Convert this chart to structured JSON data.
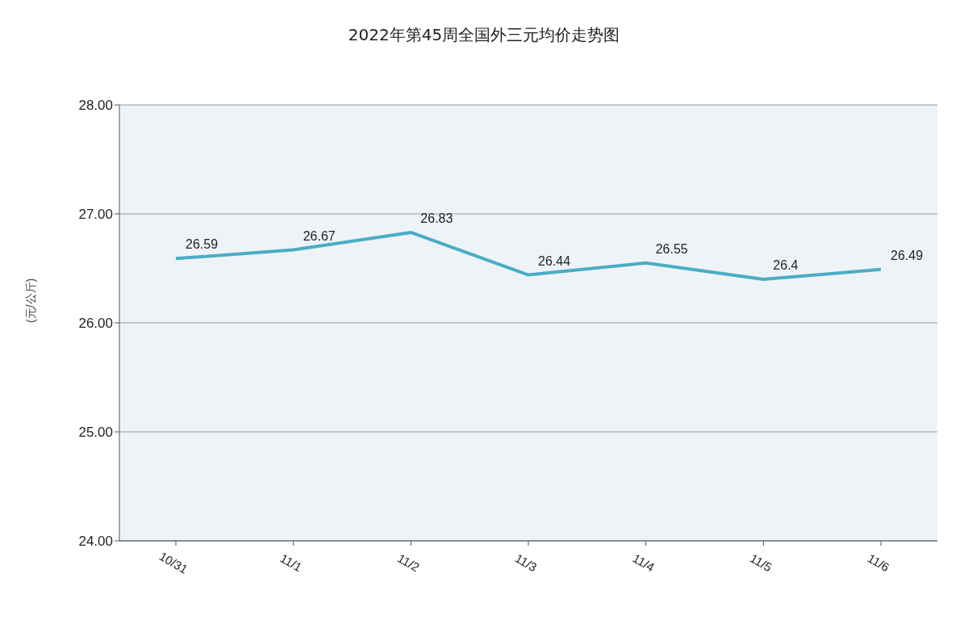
{
  "chart_data": {
    "type": "line",
    "title": "2022年第45周全国外三元均价走势图",
    "ylabel": "(元/公斤)",
    "categories": [
      "10/31",
      "11/1",
      "11/2",
      "11/3",
      "11/4",
      "11/5",
      "11/6"
    ],
    "series": [
      {
        "color": "#4bacc6",
        "values": [
          26.59,
          26.67,
          26.83,
          26.44,
          26.55,
          26.4,
          26.49
        ],
        "value_labels": [
          "26.59",
          "26.67",
          "26.83",
          "26.44",
          "26.55",
          "26.4",
          "26.49"
        ]
      }
    ],
    "ylim": [
      24,
      28
    ],
    "yticks": [
      {
        "value": 24,
        "label": "24.00"
      },
      {
        "value": 25,
        "label": "25.00"
      },
      {
        "value": 26,
        "label": "26.00"
      },
      {
        "value": 27,
        "label": "27.00"
      },
      {
        "value": 28,
        "label": "28.00"
      }
    ],
    "grid": "y",
    "marker": "none",
    "line_style": "solid",
    "legend": false
  }
}
